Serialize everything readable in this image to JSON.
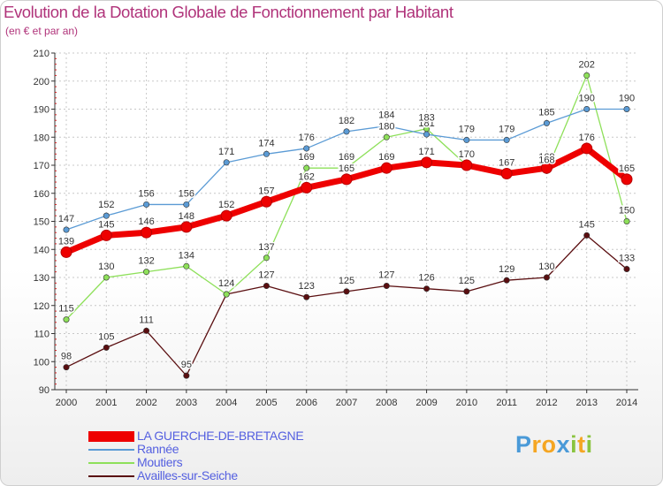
{
  "title": "Evolution de la Dotation Globale de Fonctionnement par Habitant",
  "subtitle": "(en € et par an)",
  "brand": {
    "letters": [
      "P",
      "r",
      "o",
      "x",
      "i",
      "t",
      "i"
    ],
    "colors": [
      "#4a9ad8",
      "#f5a623",
      "#f5a623",
      "#4a9ad8",
      "#8ac43f",
      "#f5a623",
      "#8ac43f"
    ]
  },
  "legend": [
    {
      "label": "LA GUERCHE-DE-BRETAGNE",
      "color": "#ee0000"
    },
    {
      "label": "Rannée",
      "color": "#5b9bd5"
    },
    {
      "label": "Moutiers",
      "color": "#8ee05a"
    },
    {
      "label": "Availles-sur-Seiche",
      "color": "#5a0e10"
    }
  ],
  "chart_data": {
    "type": "line",
    "title": "Evolution de la Dotation Globale de Fonctionnement par Habitant",
    "subtitle": "(en € et par an)",
    "xlabel": "",
    "ylabel": "",
    "x": [
      2000,
      2001,
      2002,
      2003,
      2004,
      2005,
      2006,
      2007,
      2008,
      2009,
      2010,
      2011,
      2012,
      2013,
      2014
    ],
    "ylim": [
      90,
      210
    ],
    "yticks": [
      90,
      100,
      110,
      120,
      130,
      140,
      150,
      160,
      170,
      180,
      190,
      200,
      210
    ],
    "grid": true,
    "legend_position": "bottom",
    "series": [
      {
        "name": "LA GUERCHE-DE-BRETAGNE",
        "color": "#ee0000",
        "values": [
          139,
          145,
          146,
          148,
          152,
          157,
          162,
          165,
          169,
          171,
          170,
          167,
          169,
          176,
          165
        ]
      },
      {
        "name": "Rannée",
        "color": "#5b9bd5",
        "values": [
          147,
          152,
          156,
          156,
          171,
          174,
          176,
          182,
          184,
          181,
          179,
          179,
          185,
          190,
          190
        ]
      },
      {
        "name": "Moutiers",
        "color": "#8ee05a",
        "values": [
          115,
          130,
          132,
          134,
          124,
          137,
          169,
          169,
          180,
          183,
          170,
          167,
          168,
          202,
          150
        ]
      },
      {
        "name": "Availles-sur-Seiche",
        "color": "#5a0e10",
        "values": [
          98,
          105,
          111,
          95,
          124,
          127,
          123,
          125,
          127,
          126,
          125,
          129,
          130,
          145,
          133
        ]
      }
    ]
  }
}
